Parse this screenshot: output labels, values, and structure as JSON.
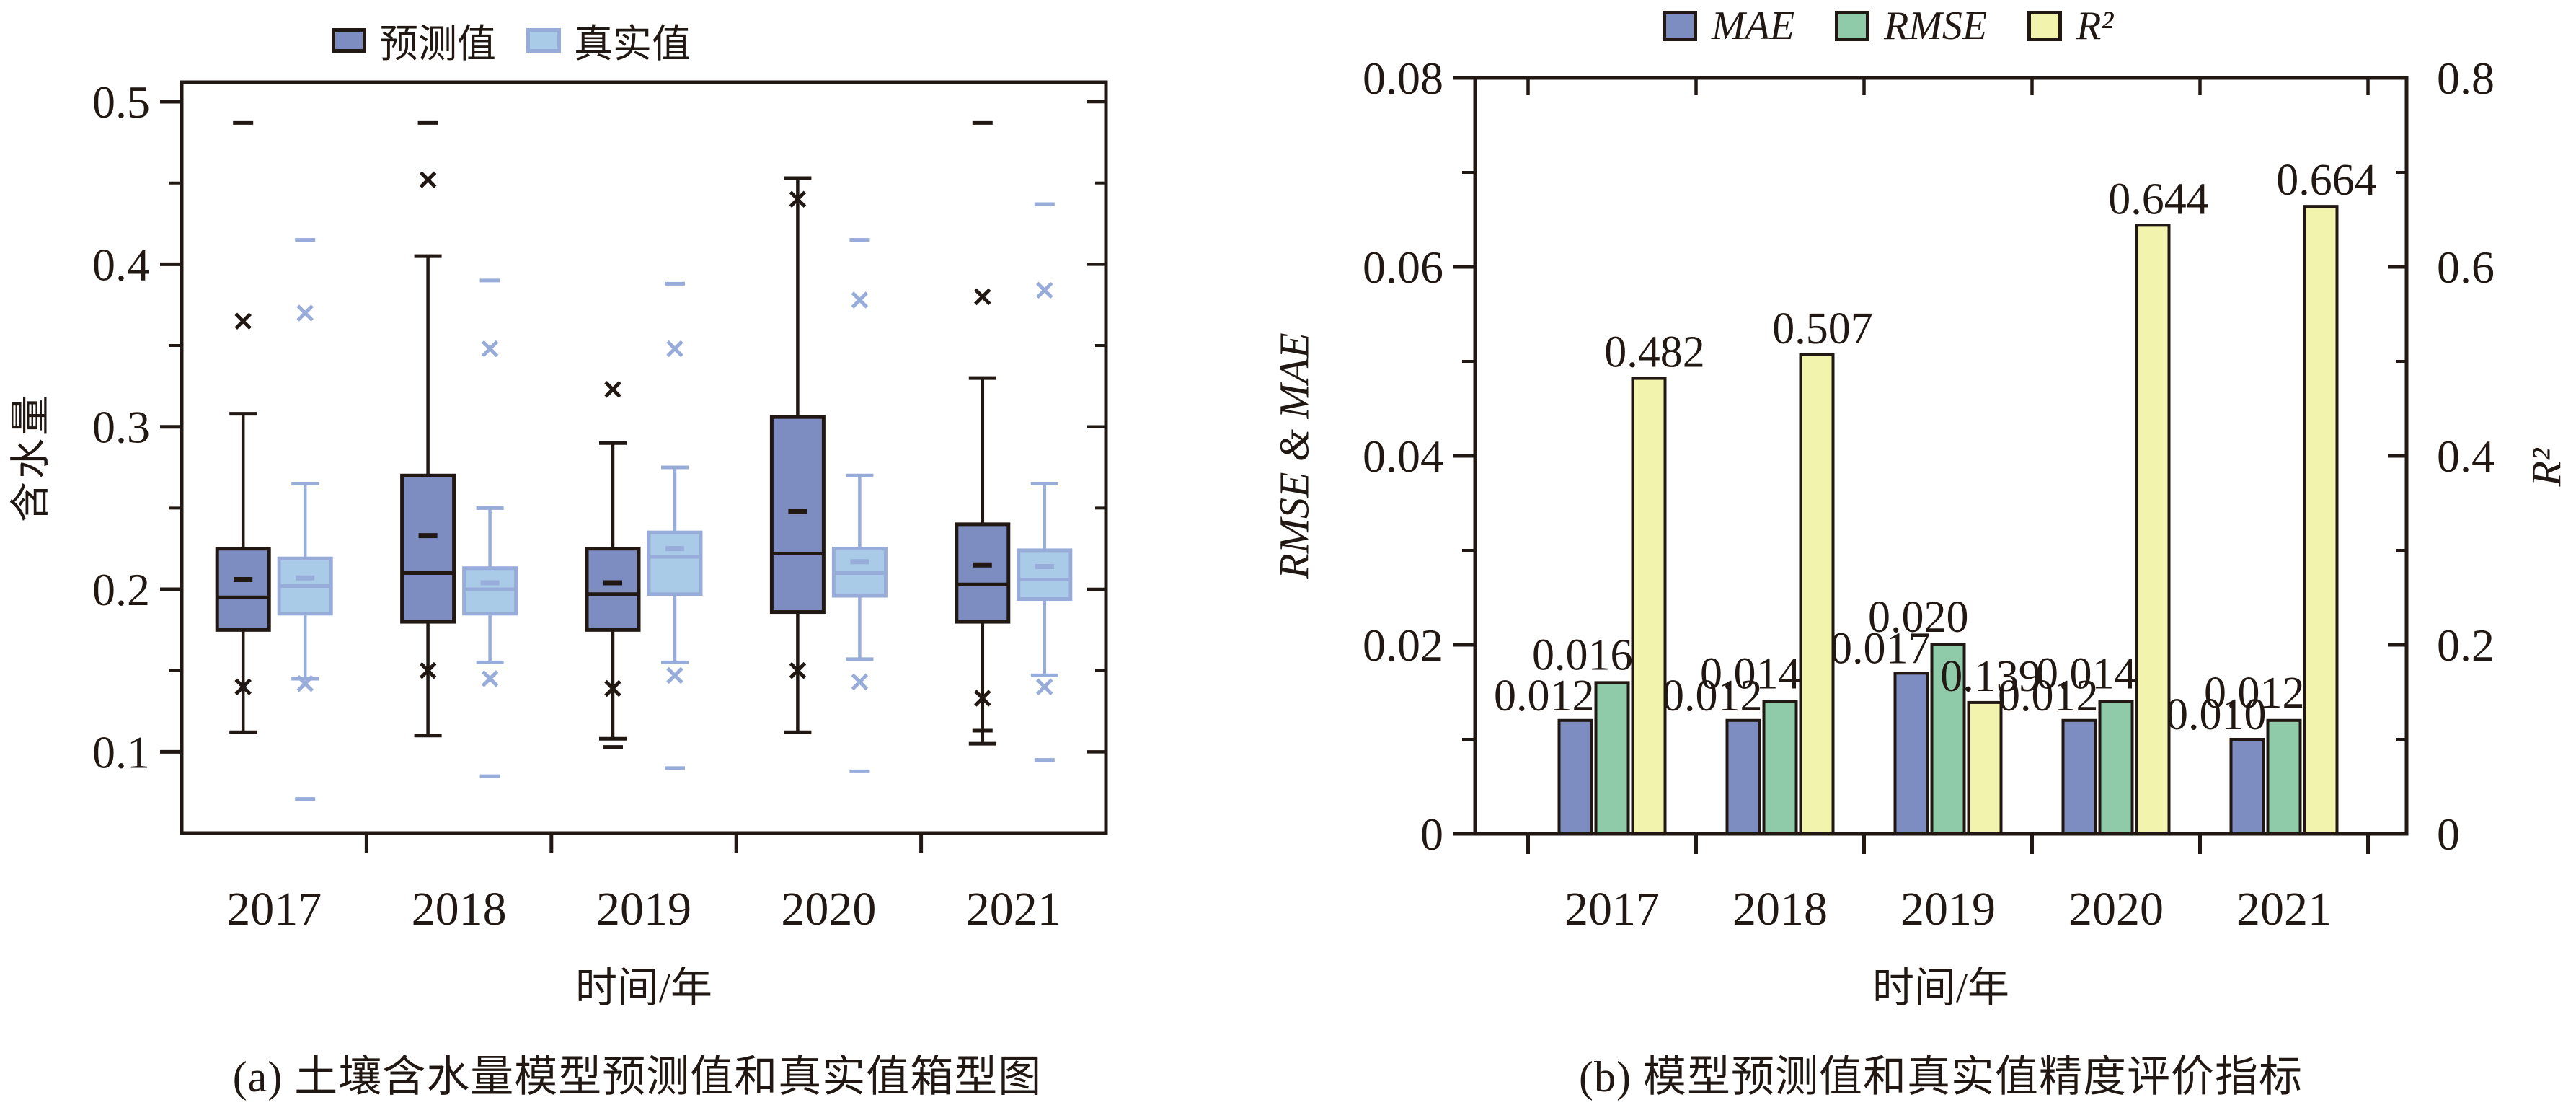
{
  "colors": {
    "background": "#ffffff",
    "axis": "#221813",
    "predicted_fill": "#7d8dc2",
    "predicted_stroke": "#221813",
    "true_fill": "#a9cbe7",
    "true_stroke": "#98acd9",
    "mae_fill": "#7d8dc2",
    "rmse_fill": "#90cba9",
    "r2_fill": "#f2f3ad",
    "bar_stroke": "#221813"
  },
  "chart_data": [
    {
      "type": "boxplot",
      "title": "(a) 土壤含水量模型预测值和真实值箱型图",
      "xlabel": "时间/年",
      "ylabel": "含水量",
      "ylim": [
        0.05,
        0.512
      ],
      "yticks": {
        "values": [
          0.1,
          0.2,
          0.3,
          0.4,
          0.5
        ],
        "labels": [
          "0.1",
          "0.2",
          "0.3",
          "0.4",
          "0.5"
        ]
      },
      "yticks_minor": [
        0.15,
        0.25,
        0.35,
        0.45
      ],
      "grid": false,
      "legend_position": "top",
      "legend": [
        "预测值",
        "真实值"
      ],
      "categories": [
        "2017",
        "2018",
        "2019",
        "2020",
        "2021"
      ],
      "series": [
        {
          "name": "预测值",
          "role": "predicted",
          "boxes": [
            {
              "category": "2017",
              "low": 0.112,
              "q1": 0.175,
              "median": 0.195,
              "mean": 0.206,
              "q3": 0.225,
              "high": 0.308,
              "outliers_x": [
                0.365,
                0.14
              ],
              "outliers_dash": [
                0.487
              ]
            },
            {
              "category": "2018",
              "low": 0.11,
              "q1": 0.18,
              "median": 0.21,
              "mean": 0.233,
              "q3": 0.27,
              "high": 0.405,
              "outliers_x": [
                0.452,
                0.15
              ],
              "outliers_dash": [
                0.487
              ]
            },
            {
              "category": "2019",
              "low": 0.108,
              "q1": 0.175,
              "median": 0.197,
              "mean": 0.204,
              "q3": 0.225,
              "high": 0.29,
              "outliers_x": [
                0.323,
                0.139
              ],
              "outliers_dash": [
                0.103
              ]
            },
            {
              "category": "2020",
              "low": 0.112,
              "q1": 0.186,
              "median": 0.222,
              "mean": 0.248,
              "q3": 0.306,
              "high": 0.453,
              "outliers_x": [
                0.44,
                0.15
              ],
              "outliers_dash": []
            },
            {
              "category": "2021",
              "low": 0.105,
              "q1": 0.18,
              "median": 0.203,
              "mean": 0.215,
              "q3": 0.24,
              "high": 0.33,
              "outliers_x": [
                0.38,
                0.133
              ],
              "outliers_dash": [
                0.487,
                0.113
              ]
            }
          ]
        },
        {
          "name": "真实值",
          "role": "true",
          "boxes": [
            {
              "category": "2017",
              "low": 0.145,
              "q1": 0.185,
              "median": 0.202,
              "mean": 0.207,
              "q3": 0.219,
              "high": 0.265,
              "outliers_x": [
                0.37,
                0.142
              ],
              "outliers_dash": [
                0.415,
                0.071
              ]
            },
            {
              "category": "2018",
              "low": 0.155,
              "q1": 0.185,
              "median": 0.2,
              "mean": 0.204,
              "q3": 0.213,
              "high": 0.25,
              "outliers_x": [
                0.348,
                0.145
              ],
              "outliers_dash": [
                0.39,
                0.085
              ]
            },
            {
              "category": "2019",
              "low": 0.155,
              "q1": 0.197,
              "median": 0.22,
              "mean": 0.225,
              "q3": 0.235,
              "high": 0.275,
              "outliers_x": [
                0.348,
                0.147
              ],
              "outliers_dash": [
                0.388,
                0.09
              ]
            },
            {
              "category": "2020",
              "low": 0.157,
              "q1": 0.196,
              "median": 0.21,
              "mean": 0.217,
              "q3": 0.225,
              "high": 0.27,
              "outliers_x": [
                0.378,
                0.143
              ],
              "outliers_dash": [
                0.415,
                0.088
              ]
            },
            {
              "category": "2021",
              "low": 0.147,
              "q1": 0.194,
              "median": 0.206,
              "mean": 0.214,
              "q3": 0.224,
              "high": 0.265,
              "outliers_x": [
                0.384,
                0.14
              ],
              "outliers_dash": [
                0.437,
                0.095
              ]
            }
          ]
        }
      ]
    },
    {
      "type": "bar",
      "title": "(b) 模型预测值和真实值精度评价指标",
      "xlabel": "时间/年",
      "ylabel_left": "RMSE & MAE",
      "ylabel_right": "R²",
      "ylim_left": [
        0,
        0.08
      ],
      "ylim_right": [
        0,
        0.8
      ],
      "yticks_left": {
        "values": [
          0,
          0.02,
          0.04,
          0.06,
          0.08
        ],
        "labels": [
          "0",
          "0.02",
          "0.04",
          "0.06",
          "0.08"
        ]
      },
      "yticks_left_minor": [
        0.01,
        0.03,
        0.05,
        0.07
      ],
      "yticks_right": {
        "values": [
          0,
          0.2,
          0.4,
          0.6,
          0.8
        ],
        "labels": [
          "0",
          "0.2",
          "0.4",
          "0.6",
          "0.8"
        ]
      },
      "yticks_right_minor": [
        0.1,
        0.3,
        0.5,
        0.7
      ],
      "grid": false,
      "legend_position": "top",
      "legend": [
        "MAE",
        "RMSE",
        "R²"
      ],
      "categories": [
        "2017",
        "2018",
        "2019",
        "2020",
        "2021"
      ],
      "series": [
        {
          "name": "MAE",
          "axis": "left",
          "values": [
            0.012,
            0.012,
            0.017,
            0.012,
            0.01
          ],
          "labels": [
            "0.012",
            "0.012",
            "0.017",
            "0.012",
            "0.010"
          ]
        },
        {
          "name": "RMSE",
          "axis": "left",
          "values": [
            0.016,
            0.014,
            0.02,
            0.014,
            0.012
          ],
          "labels": [
            "0.016",
            "0.014",
            "0.020",
            "0.014",
            "0.012"
          ]
        },
        {
          "name": "R²",
          "axis": "right",
          "values": [
            0.482,
            0.507,
            0.139,
            0.644,
            0.664
          ],
          "labels": [
            "0.482",
            "0.507",
            "0.139",
            "0.644",
            "0.664"
          ]
        }
      ]
    }
  ]
}
